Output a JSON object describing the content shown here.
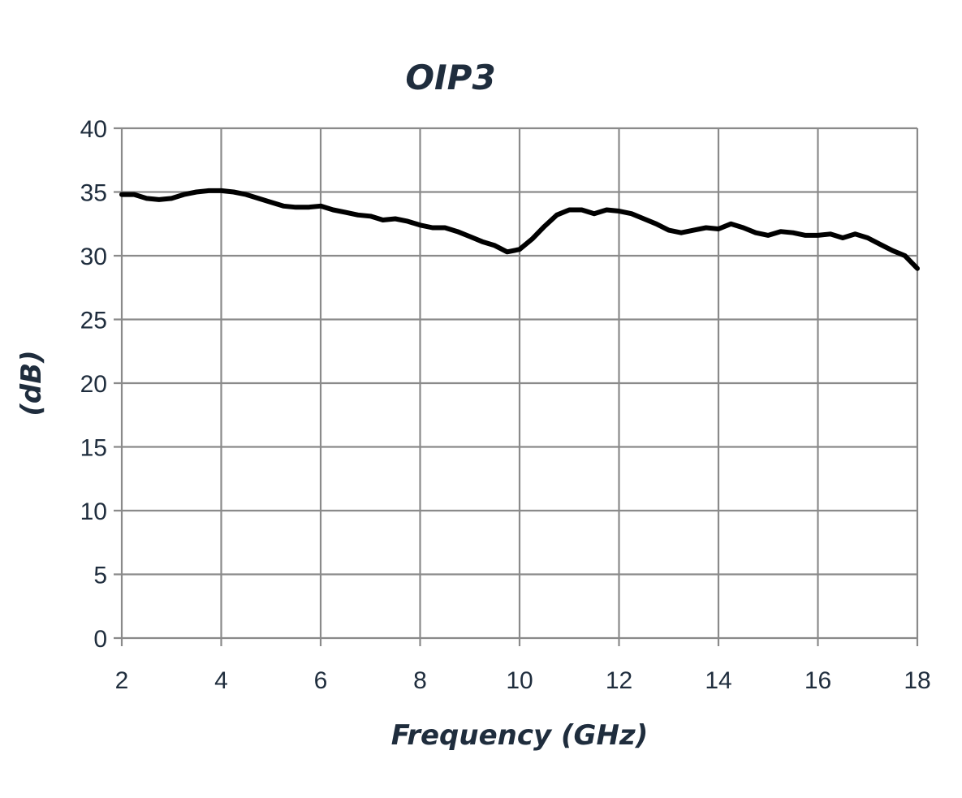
{
  "chart_data": {
    "type": "line",
    "title": "OIP3",
    "xlabel": "Frequency (GHz)",
    "ylabel": "(dB)",
    "xlim": [
      2,
      18
    ],
    "ylim": [
      0,
      40
    ],
    "x_ticks": [
      "2",
      "4",
      "6",
      "8",
      "10",
      "12",
      "14",
      "16",
      "18"
    ],
    "y_ticks": [
      "0",
      "5",
      "10",
      "15",
      "20",
      "25",
      "30",
      "35",
      "40"
    ],
    "grid": true,
    "legend": "none",
    "line_color": "#000000",
    "series": [
      {
        "x": [
          2.0,
          2.25,
          2.5,
          2.75,
          3.0,
          3.25,
          3.5,
          3.75,
          4.0,
          4.25,
          4.5,
          4.75,
          5.0,
          5.25,
          5.5,
          5.75,
          6.0,
          6.25,
          6.5,
          6.75,
          7.0,
          7.25,
          7.5,
          7.75,
          8.0,
          8.25,
          8.5,
          8.75,
          9.0,
          9.25,
          9.5,
          9.75,
          10.0,
          10.25,
          10.5,
          10.75,
          11.0,
          11.25,
          11.5,
          11.75,
          12.0,
          12.25,
          12.5,
          12.75,
          13.0,
          13.25,
          13.5,
          13.75,
          14.0,
          14.25,
          14.5,
          14.75,
          15.0,
          15.25,
          15.5,
          15.75,
          16.0,
          16.25,
          16.5,
          16.75,
          17.0,
          17.25,
          17.5,
          17.75,
          18.0
        ],
        "values": [
          34.8,
          34.8,
          34.5,
          34.4,
          34.5,
          34.8,
          35.0,
          35.1,
          35.1,
          35.0,
          34.8,
          34.5,
          34.2,
          33.9,
          33.8,
          33.8,
          33.9,
          33.6,
          33.4,
          33.2,
          33.1,
          32.8,
          32.9,
          32.7,
          32.4,
          32.2,
          32.2,
          31.9,
          31.5,
          31.1,
          30.8,
          30.3,
          30.5,
          31.3,
          32.3,
          33.2,
          33.6,
          33.6,
          33.3,
          33.6,
          33.5,
          33.3,
          32.9,
          32.5,
          32.0,
          31.8,
          32.0,
          32.2,
          32.1,
          32.5,
          32.2,
          31.8,
          31.6,
          31.9,
          31.8,
          31.6,
          31.6,
          31.7,
          31.4,
          31.7,
          31.4,
          30.9,
          30.4,
          30.0,
          29.0
        ]
      }
    ]
  }
}
